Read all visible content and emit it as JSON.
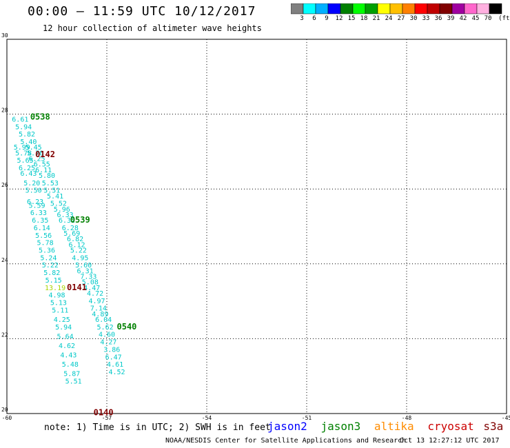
{
  "header": {
    "title": "00:00 – 11:59 UTC 10/12/2017",
    "subtitle": "12 hour collection of altimeter wave heights"
  },
  "colorbar": {
    "colors": [
      "#808080",
      "#00ffff",
      "#00b0ff",
      "#0000ff",
      "#008000",
      "#00ff00",
      "#00a000",
      "#ffff00",
      "#ffc000",
      "#ff8000",
      "#ff0000",
      "#c00000",
      "#800000",
      "#a000a0",
      "#ff66cc",
      "#ffb0e0",
      "#000000"
    ],
    "labels": [
      "3",
      "6",
      "9",
      "12",
      "15",
      "18",
      "21",
      "24",
      "27",
      "30",
      "33",
      "36",
      "39",
      "42",
      "45",
      "70",
      "(ft)"
    ]
  },
  "map": {
    "lon_range": [
      -60,
      -45
    ],
    "lat_range": [
      20,
      30
    ],
    "lon_ticks": [
      "-60",
      "-57",
      "-54",
      "-51",
      "-48",
      "-45"
    ],
    "lat_ticks": [
      "30",
      "28",
      "26",
      "24",
      "22",
      "20"
    ],
    "grid": "dotted"
  },
  "colors": {
    "cyan_value": "#00c8c8",
    "yellow_value": "#a8d400",
    "jason2": "#0000ff",
    "jason3": "#008000",
    "altika": "#ff8c00",
    "cryosat": "#cc0000",
    "s3a": "#800000",
    "pass_green": "#008000",
    "pass_dark": "#800000"
  },
  "pass_labels": [
    {
      "text": "0538",
      "lon": -59.3,
      "lat": 27.85,
      "color": "#008000"
    },
    {
      "text": "0142",
      "lon": -59.15,
      "lat": 26.85,
      "color": "#800000"
    },
    {
      "text": "0539",
      "lon": -58.1,
      "lat": 25.1,
      "color": "#008000"
    },
    {
      "text": "0141",
      "lon": -58.2,
      "lat": 23.3,
      "color": "#800000"
    },
    {
      "text": "0540",
      "lon": -56.7,
      "lat": 22.25,
      "color": "#008000"
    },
    {
      "text": "0140",
      "lon": -57.4,
      "lat": 19.95,
      "color": "#800000"
    }
  ],
  "track_west": [
    {
      "text": "6.61",
      "lon": -59.6,
      "lat": 27.8
    },
    {
      "text": "5.94",
      "lon": -59.5,
      "lat": 27.6
    },
    {
      "text": "5.82",
      "lon": -59.4,
      "lat": 27.4
    },
    {
      "text": "5.40",
      "lon": -59.35,
      "lat": 27.2
    },
    {
      "text": "5.99",
      "lon": -59.55,
      "lat": 27.05
    },
    {
      "text": "5.45",
      "lon": -59.2,
      "lat": 27.05
    },
    {
      "text": "5.78",
      "lon": -59.5,
      "lat": 26.9
    },
    {
      "text": "5.70",
      "lon": -59.15,
      "lat": 26.9
    },
    {
      "text": "5.65",
      "lon": -59.45,
      "lat": 26.7
    },
    {
      "text": "6.25",
      "lon": -59.1,
      "lat": 26.75
    },
    {
      "text": "6.55",
      "lon": -58.95,
      "lat": 26.6
    },
    {
      "text": "6.25",
      "lon": -59.4,
      "lat": 26.5
    },
    {
      "text": "6.11",
      "lon": -58.9,
      "lat": 26.45
    },
    {
      "text": "6.43",
      "lon": -59.35,
      "lat": 26.35
    },
    {
      "text": "5.80",
      "lon": -58.8,
      "lat": 26.3
    },
    {
      "text": "5.20",
      "lon": -59.25,
      "lat": 26.1
    },
    {
      "text": "5.53",
      "lon": -58.7,
      "lat": 26.1
    },
    {
      "text": "5.50",
      "lon": -59.2,
      "lat": 25.9
    },
    {
      "text": "5.51",
      "lon": -58.65,
      "lat": 25.9
    },
    {
      "text": "6.23",
      "lon": -59.15,
      "lat": 25.6
    },
    {
      "text": "5.41",
      "lon": -58.55,
      "lat": 25.75
    },
    {
      "text": "5.52",
      "lon": -58.45,
      "lat": 25.55
    },
    {
      "text": "5.59",
      "lon": -59.1,
      "lat": 25.5
    },
    {
      "text": "5.96",
      "lon": -58.35,
      "lat": 25.4
    },
    {
      "text": "6.33",
      "lon": -59.05,
      "lat": 25.3
    },
    {
      "text": "6.33",
      "lon": -58.25,
      "lat": 25.25
    },
    {
      "text": "6.35",
      "lon": -59.0,
      "lat": 25.1
    },
    {
      "text": "6.32",
      "lon": -58.2,
      "lat": 25.1
    },
    {
      "text": "6.14",
      "lon": -58.95,
      "lat": 24.9
    },
    {
      "text": "6.28",
      "lon": -58.1,
      "lat": 24.9
    },
    {
      "text": "5.56",
      "lon": -58.9,
      "lat": 24.7
    },
    {
      "text": "5.69",
      "lon": -58.05,
      "lat": 24.75
    },
    {
      "text": "5.78",
      "lon": -58.85,
      "lat": 24.5
    },
    {
      "text": "6.82",
      "lon": -57.95,
      "lat": 24.6
    },
    {
      "text": "6.12",
      "lon": -57.9,
      "lat": 24.45
    },
    {
      "text": "5.36",
      "lon": -58.8,
      "lat": 24.3
    },
    {
      "text": "5.22",
      "lon": -57.85,
      "lat": 24.3
    },
    {
      "text": "5.24",
      "lon": -58.75,
      "lat": 24.1
    },
    {
      "text": "4.95",
      "lon": -57.8,
      "lat": 24.1
    },
    {
      "text": "5.22",
      "lon": -58.7,
      "lat": 23.9
    },
    {
      "text": "5.60",
      "lon": -57.7,
      "lat": 23.9
    },
    {
      "text": "5.82",
      "lon": -58.65,
      "lat": 23.7
    },
    {
      "text": "6.31",
      "lon": -57.65,
      "lat": 23.75
    },
    {
      "text": "7.33",
      "lon": -57.55,
      "lat": 23.6
    },
    {
      "text": "5.15",
      "lon": -58.6,
      "lat": 23.5
    },
    {
      "text": "5.08",
      "lon": -57.5,
      "lat": 23.45
    },
    {
      "text": "4.47",
      "lon": -57.45,
      "lat": 23.3
    },
    {
      "text": "4.98",
      "lon": -58.5,
      "lat": 23.1
    },
    {
      "text": "4.72",
      "lon": -57.35,
      "lat": 23.15
    },
    {
      "text": "5.13",
      "lon": -58.45,
      "lat": 22.9
    },
    {
      "text": "4.97",
      "lon": -57.3,
      "lat": 22.95
    },
    {
      "text": "5.11",
      "lon": -58.4,
      "lat": 22.7
    },
    {
      "text": "7.14",
      "lon": -57.25,
      "lat": 22.75
    },
    {
      "text": "4.89",
      "lon": -57.2,
      "lat": 22.6
    },
    {
      "text": "4.25",
      "lon": -58.35,
      "lat": 22.45
    },
    {
      "text": "6.04",
      "lon": -57.1,
      "lat": 22.45
    },
    {
      "text": "5.94",
      "lon": -58.3,
      "lat": 22.25
    },
    {
      "text": "5.62",
      "lon": -57.05,
      "lat": 22.25
    },
    {
      "text": "5.64",
      "lon": -58.25,
      "lat": 22.0
    },
    {
      "text": "4.60",
      "lon": -57.0,
      "lat": 22.05
    },
    {
      "text": "4.62",
      "lon": -58.2,
      "lat": 21.75
    },
    {
      "text": "4.27",
      "lon": -56.95,
      "lat": 21.85
    },
    {
      "text": "3.86",
      "lon": -56.85,
      "lat": 21.65
    },
    {
      "text": "4.43",
      "lon": -58.15,
      "lat": 21.5
    },
    {
      "text": "6.47",
      "lon": -56.8,
      "lat": 21.45
    },
    {
      "text": "5.48",
      "lon": -58.1,
      "lat": 21.25
    },
    {
      "text": "4.61",
      "lon": -56.75,
      "lat": 21.25
    },
    {
      "text": "5.87",
      "lon": -58.05,
      "lat": 21.0
    },
    {
      "text": "4.52",
      "lon": -56.7,
      "lat": 21.05
    },
    {
      "text": "5.51",
      "lon": -58.0,
      "lat": 20.8
    }
  ],
  "track_special": [
    {
      "text": "13.19",
      "lon": -58.55,
      "lat": 23.3
    }
  ],
  "footer": {
    "note": "note: 1) Time is in UTC; 2) SWH is in feet",
    "satellites": [
      "jason2",
      "jason3",
      "altika",
      "cryosat",
      "s3a"
    ],
    "credit": "NOAA/NESDIS Center for Satellite Applications and Research",
    "timestamp": "Oct 13 12:27:12 UTC 2017"
  }
}
